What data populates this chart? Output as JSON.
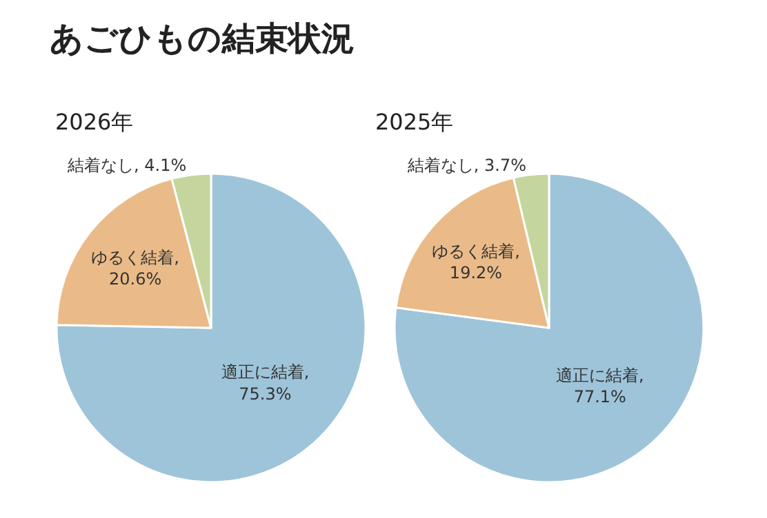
{
  "chart_data": [
    {
      "type": "other",
      "title": "あごひもの結束状況"
    },
    {
      "type": "pie",
      "title": "2026年",
      "categories": [
        "適正に結着",
        "ゆるく結着",
        "結着なし"
      ],
      "values": [
        75.3,
        20.6,
        4.1
      ],
      "colors": [
        "#9ec4d9",
        "#eabb88",
        "#c4d69d"
      ],
      "value_labels": [
        ",\n75.3%",
        ",\n20.6%",
        ", 4.1%"
      ]
    },
    {
      "type": "pie",
      "title": "2025年",
      "categories": [
        "適正に結着",
        "ゆるく結着",
        "結着なし"
      ],
      "values": [
        77.1,
        19.2,
        3.7
      ],
      "colors": [
        "#9ec4d9",
        "#eabb88",
        "#c4d69d"
      ],
      "value_labels": [
        ",\n77.1%",
        ",\n19.2%",
        ", 3.7%"
      ]
    }
  ]
}
